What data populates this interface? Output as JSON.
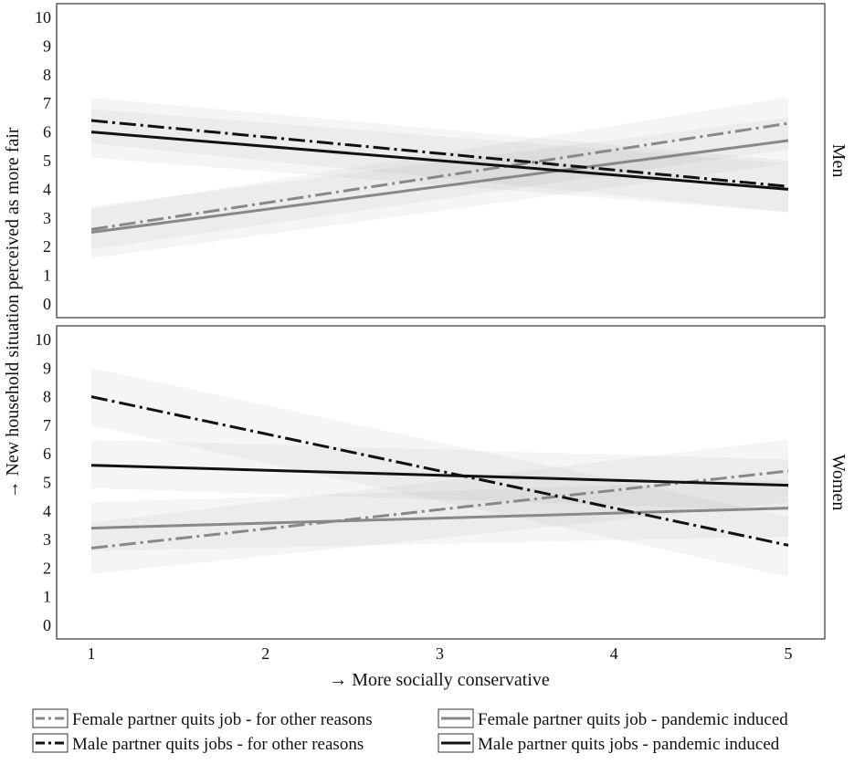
{
  "chart_data": {
    "type": "line",
    "xlabel": "→ More socially conservative",
    "ylabel": "→ New household situation perceived as more fair",
    "xlim": [
      1,
      5
    ],
    "ylim": [
      0,
      10
    ],
    "x_ticks": [
      "1",
      "2",
      "3",
      "4",
      "5"
    ],
    "y_ticks": [
      "0",
      "1",
      "2",
      "3",
      "4",
      "5",
      "6",
      "7",
      "8",
      "9",
      "10"
    ],
    "grid": false,
    "legend_position": "bottom",
    "series_styles": [
      {
        "color": "#888888",
        "dash": "dashdot"
      },
      {
        "color": "#888888",
        "dash": "solid"
      },
      {
        "color": "#111111",
        "dash": "dashdot"
      },
      {
        "color": "#111111",
        "dash": "solid"
      }
    ],
    "legend": [
      "Female partner quits job - for other reasons",
      "Female partner quits job - pandemic induced",
      "Male partner quits jobs - for other reasons",
      "Male partner quits jobs - pandemic induced"
    ],
    "panels": [
      {
        "label": "Men",
        "series": [
          {
            "name": "Female partner quits job - for other reasons",
            "x": [
              1,
              5
            ],
            "y": [
              2.6,
              6.3
            ],
            "ci_low": [
              1.9,
              5.4
            ],
            "ci_high": [
              3.3,
              7.2
            ]
          },
          {
            "name": "Female partner quits job - pandemic induced",
            "x": [
              1,
              5
            ],
            "y": [
              2.5,
              5.7
            ],
            "ci_low": [
              1.6,
              4.9
            ],
            "ci_high": [
              3.4,
              6.5
            ]
          },
          {
            "name": "Male partner quits jobs - for other reasons",
            "x": [
              1,
              5
            ],
            "y": [
              6.4,
              4.1
            ],
            "ci_low": [
              5.6,
              3.2
            ],
            "ci_high": [
              7.2,
              5.0
            ]
          },
          {
            "name": "Male partner quits jobs - pandemic induced",
            "x": [
              1,
              5
            ],
            "y": [
              6.0,
              4.0
            ],
            "ci_low": [
              5.1,
              3.2
            ],
            "ci_high": [
              6.8,
              4.9
            ]
          }
        ]
      },
      {
        "label": "Women",
        "series": [
          {
            "name": "Female partner quits job - for other reasons",
            "x": [
              1,
              5
            ],
            "y": [
              2.7,
              5.4
            ],
            "ci_low": [
              1.8,
              4.3
            ],
            "ci_high": [
              3.6,
              6.5
            ]
          },
          {
            "name": "Female partner quits job - pandemic induced",
            "x": [
              1,
              5
            ],
            "y": [
              3.4,
              4.1
            ],
            "ci_low": [
              2.6,
              3.1
            ],
            "ci_high": [
              4.3,
              5.1
            ]
          },
          {
            "name": "Male partner quits jobs - for other reasons",
            "x": [
              1,
              5
            ],
            "y": [
              8.0,
              2.8
            ],
            "ci_low": [
              7.0,
              1.7
            ],
            "ci_high": [
              9.0,
              3.8
            ]
          },
          {
            "name": "Male partner quits jobs - pandemic induced",
            "x": [
              1,
              5
            ],
            "y": [
              5.6,
              4.9
            ],
            "ci_low": [
              4.8,
              4.0
            ],
            "ci_high": [
              6.5,
              5.8
            ]
          }
        ]
      }
    ]
  }
}
